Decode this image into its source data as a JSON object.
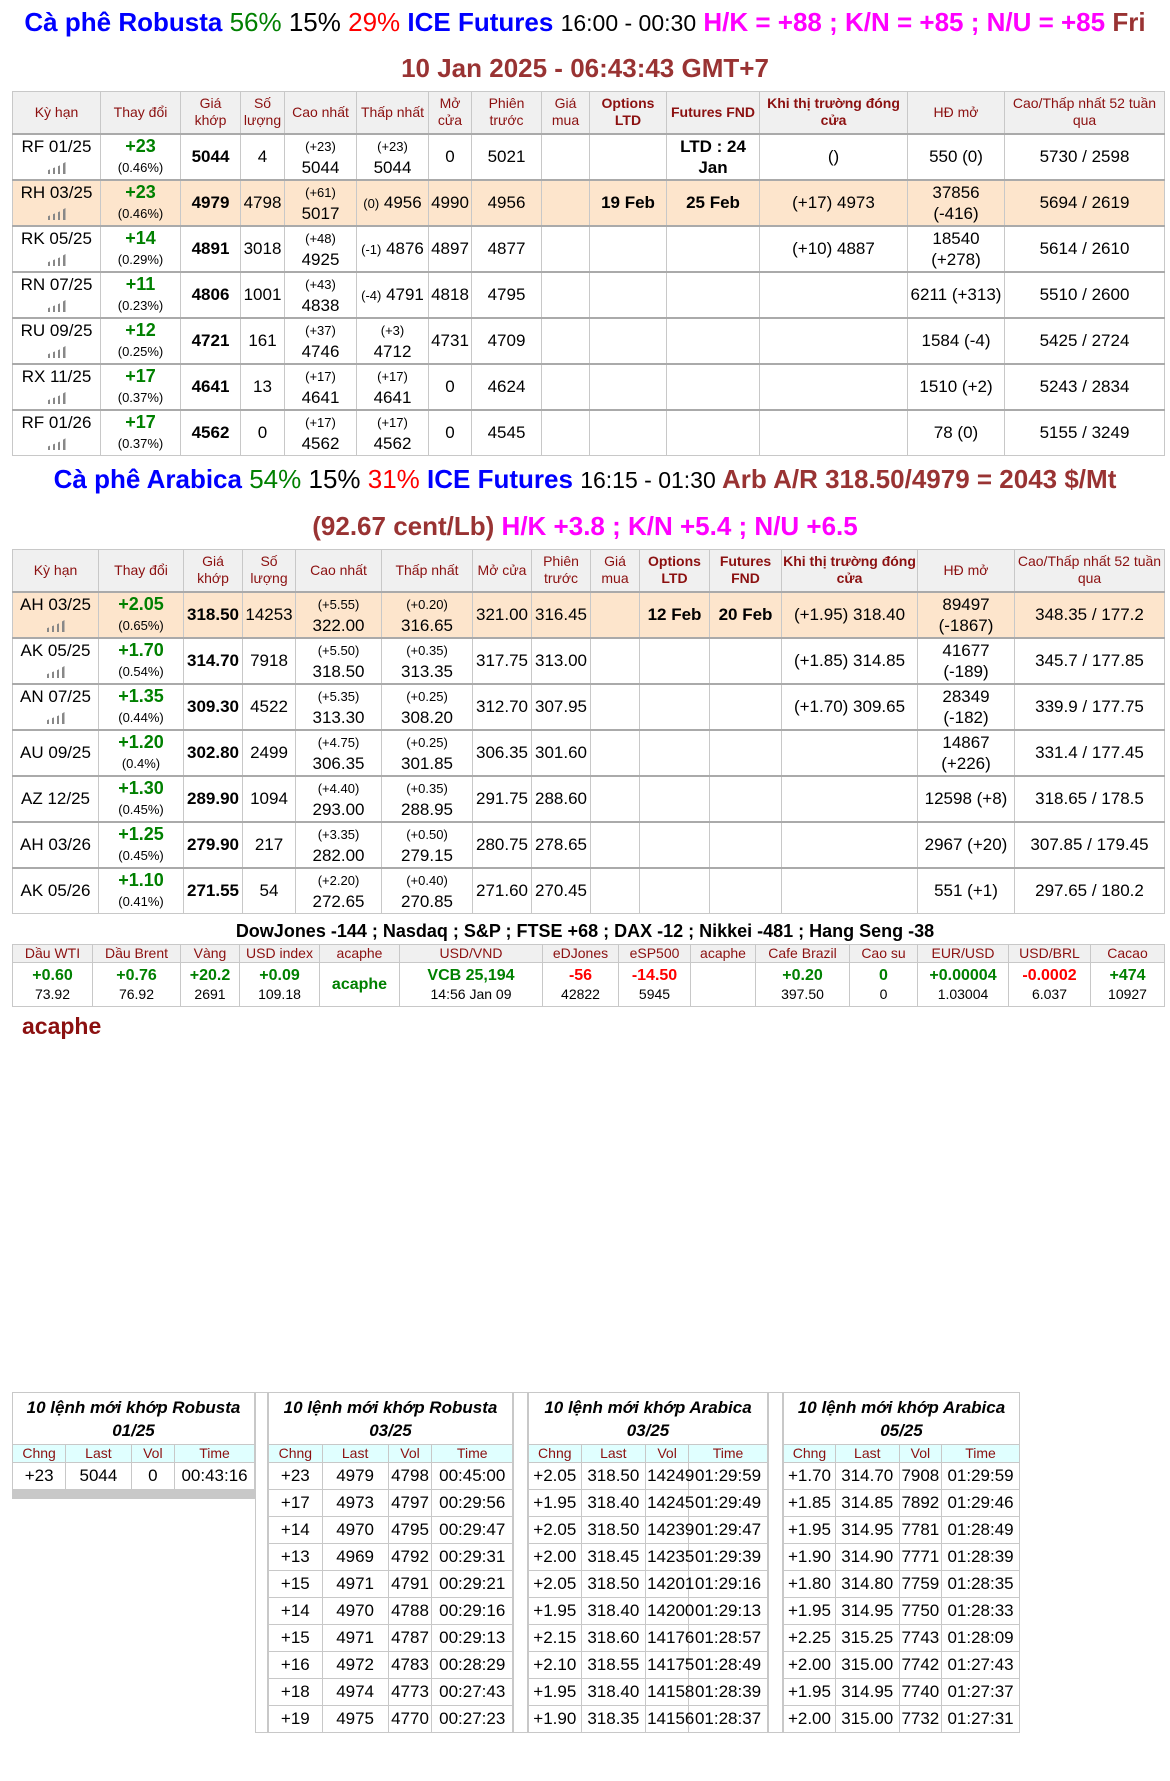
{
  "robusta_title": {
    "name": "Cà phê Robusta",
    "p1": "56%",
    "p2": "15%",
    "p3": "29%",
    "exchange": "ICE Futures",
    "hours": "16:00 - 00:30",
    "spreads": "H/K = +88 ; K/N = +85 ; N/U = +85",
    "date": "Fri 10 Jan 2025 - 06:43:43 GMT+7"
  },
  "headers_robusta": [
    "Kỳ hạn",
    "Thay đổi",
    "Giá khớp",
    "Số lượng",
    "Cao nhất",
    "Thấp nhất",
    "Mở cửa",
    "Phiên trước",
    "Giá mua",
    "Options LTD",
    "Futures FND",
    "Khi thị trường đóng cửa",
    "HĐ mở",
    "Cao/Thấp nhất 52 tuần qua"
  ],
  "robusta": [
    {
      "term": "RF 01/25",
      "chg": "+23",
      "pct": "(0.46%)",
      "last": "5044",
      "vol": "4",
      "hi_c": "(+23)",
      "hi": "5044",
      "lo_c": "(+23)",
      "lo": "5044",
      "lo_inline": false,
      "open": "0",
      "prev": "5021",
      "bid": "",
      "opt": "",
      "fnd": "LTD : 24 Jan",
      "close": "()",
      "oi": "550 (0)",
      "hl52": "5730 / 2598"
    },
    {
      "term": "RH 03/25",
      "chg": "+23",
      "pct": "(0.46%)",
      "last": "4979",
      "vol": "4798",
      "hi_c": "(+61)",
      "hi": "5017",
      "lo_c": "(0)",
      "lo": "4956",
      "lo_inline": true,
      "open": "4990",
      "prev": "4956",
      "bid": "",
      "opt": "19 Feb",
      "fnd": "25 Feb",
      "close": "(+17) 4973",
      "oi": "37856 (-416)",
      "hl52": "5694 / 2619",
      "highlight": true
    },
    {
      "term": "RK 05/25",
      "chg": "+14",
      "pct": "(0.29%)",
      "last": "4891",
      "vol": "3018",
      "hi_c": "(+48)",
      "hi": "4925",
      "lo_c": "(-1)",
      "lo": "4876",
      "lo_inline": true,
      "open": "4897",
      "prev": "4877",
      "bid": "",
      "opt": "",
      "fnd": "",
      "close": "(+10) 4887",
      "oi": "18540 (+278)",
      "hl52": "5614 / 2610"
    },
    {
      "term": "RN 07/25",
      "chg": "+11",
      "pct": "(0.23%)",
      "last": "4806",
      "vol": "1001",
      "hi_c": "(+43)",
      "hi": "4838",
      "lo_c": "(-4)",
      "lo": "4791",
      "lo_inline": true,
      "open": "4818",
      "prev": "4795",
      "bid": "",
      "opt": "",
      "fnd": "",
      "close": "",
      "oi": "6211 (+313)",
      "hl52": "5510 / 2600"
    },
    {
      "term": "RU 09/25",
      "chg": "+12",
      "pct": "(0.25%)",
      "last": "4721",
      "vol": "161",
      "hi_c": "(+37)",
      "hi": "4746",
      "lo_c": "(+3)",
      "lo": "4712",
      "lo_inline": false,
      "open": "4731",
      "prev": "4709",
      "bid": "",
      "opt": "",
      "fnd": "",
      "close": "",
      "oi": "1584 (-4)",
      "hl52": "5425 / 2724"
    },
    {
      "term": "RX 11/25",
      "chg": "+17",
      "pct": "(0.37%)",
      "last": "4641",
      "vol": "13",
      "hi_c": "(+17)",
      "hi": "4641",
      "lo_c": "(+17)",
      "lo": "4641",
      "lo_inline": false,
      "open": "0",
      "prev": "4624",
      "bid": "",
      "opt": "",
      "fnd": "",
      "close": "",
      "oi": "1510 (+2)",
      "hl52": "5243 / 2834"
    },
    {
      "term": "RF 01/26",
      "chg": "+17",
      "pct": "(0.37%)",
      "last": "4562",
      "vol": "0",
      "hi_c": "(+17)",
      "hi": "4562",
      "lo_c": "(+17)",
      "lo": "4562",
      "lo_inline": false,
      "open": "0",
      "prev": "4545",
      "bid": "",
      "opt": "",
      "fnd": "",
      "close": "",
      "oi": "78 (0)",
      "hl52": "5155 / 3249"
    }
  ],
  "arabica_title": {
    "name": "Cà phê Arabica",
    "p1": "54%",
    "p2": "15%",
    "p3": "31%",
    "exchange": "ICE Futures",
    "hours": "16:15 - 01:30",
    "arb": "Arb A/R 318.50/4979 = 2043 $/Mt (92.67 cent/Lb)",
    "spreads": "H/K +3.8 ; K/N +5.4 ; N/U +6.5"
  },
  "headers_arabica": [
    "Kỳ hạn",
    "Thay đổi",
    "Giá khớp",
    "Số lượng",
    "Cao nhất",
    "Thấp nhất",
    "Mở cửa",
    "Phiên trước",
    "Giá mua",
    "Options LTD",
    "Futures FND",
    "Khi thị trường đóng cửa",
    "HĐ mở",
    "Cao/Thấp nhất 52 tuần qua"
  ],
  "arabica": [
    {
      "term": "AH 03/25",
      "chg": "+2.05",
      "pct": "(0.65%)",
      "last": "318.50",
      "vol": "14253",
      "hi_c": "(+5.55)",
      "hi": "322.00",
      "lo_c": "(+0.20)",
      "lo": "316.65",
      "open": "321.00",
      "prev": "316.45",
      "bid": "",
      "opt": "12 Feb",
      "fnd": "20 Feb",
      "close": "(+1.95) 318.40",
      "oi": "89497 (-1867)",
      "hl52": "348.35 / 177.2",
      "highlight": true,
      "icon": true
    },
    {
      "term": "AK 05/25",
      "chg": "+1.70",
      "pct": "(0.54%)",
      "last": "314.70",
      "vol": "7918",
      "hi_c": "(+5.50)",
      "hi": "318.50",
      "lo_c": "(+0.35)",
      "lo": "313.35",
      "open": "317.75",
      "prev": "313.00",
      "bid": "",
      "opt": "",
      "fnd": "",
      "close": "(+1.85) 314.85",
      "oi": "41677 (-189)",
      "hl52": "345.7 / 177.85",
      "icon": true
    },
    {
      "term": "AN 07/25",
      "chg": "+1.35",
      "pct": "(0.44%)",
      "last": "309.30",
      "vol": "4522",
      "hi_c": "(+5.35)",
      "hi": "313.30",
      "lo_c": "(+0.25)",
      "lo": "308.20",
      "open": "312.70",
      "prev": "307.95",
      "bid": "",
      "opt": "",
      "fnd": "",
      "close": "(+1.70) 309.65",
      "oi": "28349 (-182)",
      "hl52": "339.9 / 177.75",
      "icon": true
    },
    {
      "term": "AU 09/25",
      "chg": "+1.20",
      "pct": "(0.4%)",
      "last": "302.80",
      "vol": "2499",
      "hi_c": "(+4.75)",
      "hi": "306.35",
      "lo_c": "(+0.25)",
      "lo": "301.85",
      "open": "306.35",
      "prev": "301.60",
      "bid": "",
      "opt": "",
      "fnd": "",
      "close": "",
      "oi": "14867 (+226)",
      "hl52": "331.4 / 177.45"
    },
    {
      "term": "AZ 12/25",
      "chg": "+1.30",
      "pct": "(0.45%)",
      "last": "289.90",
      "vol": "1094",
      "hi_c": "(+4.40)",
      "hi": "293.00",
      "lo_c": "(+0.35)",
      "lo": "288.95",
      "open": "291.75",
      "prev": "288.60",
      "bid": "",
      "opt": "",
      "fnd": "",
      "close": "",
      "oi": "12598 (+8)",
      "hl52": "318.65 / 178.5"
    },
    {
      "term": "AH 03/26",
      "chg": "+1.25",
      "pct": "(0.45%)",
      "last": "279.90",
      "vol": "217",
      "hi_c": "(+3.35)",
      "hi": "282.00",
      "lo_c": "(+0.50)",
      "lo": "279.15",
      "open": "280.75",
      "prev": "278.65",
      "bid": "",
      "opt": "",
      "fnd": "",
      "close": "",
      "oi": "2967 (+20)",
      "hl52": "307.85 / 179.45"
    },
    {
      "term": "AK 05/26",
      "chg": "+1.10",
      "pct": "(0.41%)",
      "last": "271.55",
      "vol": "54",
      "hi_c": "(+2.20)",
      "hi": "272.65",
      "lo_c": "(+0.40)",
      "lo": "270.85",
      "open": "271.60",
      "prev": "270.45",
      "bid": "",
      "opt": "",
      "fnd": "",
      "close": "",
      "oi": "551 (+1)",
      "hl52": "297.65 / 180.2"
    }
  ],
  "indices_line": "DowJones -144 ; Nasdaq ; S&P ; FTSE +68 ; DAX -12 ; Nikkei -481 ; Hang Seng -38",
  "markets": [
    {
      "label": "Dầu WTI",
      "chg": "+0.60",
      "val": "73.92",
      "color": "#008000"
    },
    {
      "label": "Dầu Brent",
      "chg": "+0.76",
      "val": "76.92",
      "color": "#008000"
    },
    {
      "label": "Vàng",
      "chg": "+20.2",
      "val": "2691",
      "color": "#008000"
    },
    {
      "label": "USD index",
      "chg": "+0.09",
      "val": "109.18",
      "color": "#008000"
    },
    {
      "label": "acaphe",
      "chg": "acaphe",
      "val": "",
      "color": "#008000"
    },
    {
      "label": "USD/VND",
      "chg": "VCB 25,194",
      "val": "14:56 Jan 09",
      "color": "#008000"
    },
    {
      "label": "eDJones",
      "chg": "-56",
      "val": "42822",
      "color": "#ff0000"
    },
    {
      "label": "eSP500",
      "chg": "-14.50",
      "val": "5945",
      "color": "#ff0000"
    },
    {
      "label": "acaphe",
      "chg": "",
      "val": "",
      "color": "#008000"
    },
    {
      "label": "Cafe Brazil",
      "chg": "+0.20",
      "val": "397.50",
      "color": "#008000"
    },
    {
      "label": "Cao su",
      "chg": "0",
      "val": "0",
      "color": "#008000"
    },
    {
      "label": "EUR/USD",
      "chg": "+0.00004",
      "val": "1.03004",
      "color": "#008000"
    },
    {
      "label": "USD/BRL",
      "chg": "-0.0002",
      "val": "6.037",
      "color": "#ff0000"
    },
    {
      "label": "Cacao",
      "chg": "+474",
      "val": "10927",
      "color": "#008000"
    }
  ],
  "footer_brand": "acaphe",
  "trade_headers": [
    "Chng",
    "Last",
    "Vol",
    "Time"
  ],
  "trades": [
    {
      "title": "10 lệnh mới khớp Robusta 01/25",
      "rows": [
        [
          "+23",
          "5044",
          "0",
          "00:43:16"
        ],
        [
          "",
          "",
          "",
          ""
        ],
        [
          "",
          "",
          "",
          ""
        ],
        [
          "",
          "",
          "",
          ""
        ],
        [
          "",
          "",
          "",
          ""
        ],
        [
          "",
          "",
          "",
          ""
        ],
        [
          "",
          "",
          "",
          ""
        ],
        [
          "",
          "",
          "",
          ""
        ],
        [
          "",
          "",
          "",
          ""
        ],
        [
          "",
          "",
          "",
          ""
        ]
      ]
    },
    {
      "title": "10 lệnh mới khớp Robusta 03/25",
      "rows": [
        [
          "+23",
          "4979",
          "4798",
          "00:45:00"
        ],
        [
          "+17",
          "4973",
          "4797",
          "00:29:56"
        ],
        [
          "+14",
          "4970",
          "4795",
          "00:29:47"
        ],
        [
          "+13",
          "4969",
          "4792",
          "00:29:31"
        ],
        [
          "+15",
          "4971",
          "4791",
          "00:29:21"
        ],
        [
          "+14",
          "4970",
          "4788",
          "00:29:16"
        ],
        [
          "+15",
          "4971",
          "4787",
          "00:29:13"
        ],
        [
          "+16",
          "4972",
          "4783",
          "00:28:29"
        ],
        [
          "+18",
          "4974",
          "4773",
          "00:27:43"
        ],
        [
          "+19",
          "4975",
          "4770",
          "00:27:23"
        ]
      ]
    },
    {
      "title": "10 lệnh mới khớp Arabica 03/25",
      "rows": [
        [
          "+2.05",
          "318.50",
          "14249",
          "01:29:59"
        ],
        [
          "+1.95",
          "318.40",
          "14245",
          "01:29:49"
        ],
        [
          "+2.05",
          "318.50",
          "14239",
          "01:29:47"
        ],
        [
          "+2.00",
          "318.45",
          "14235",
          "01:29:39"
        ],
        [
          "+2.05",
          "318.50",
          "14201",
          "01:29:16"
        ],
        [
          "+1.95",
          "318.40",
          "14200",
          "01:29:13"
        ],
        [
          "+2.15",
          "318.60",
          "14176",
          "01:28:57"
        ],
        [
          "+2.10",
          "318.55",
          "14175",
          "01:28:49"
        ],
        [
          "+1.95",
          "318.40",
          "14158",
          "01:28:39"
        ],
        [
          "+1.90",
          "318.35",
          "14156",
          "01:28:37"
        ]
      ]
    },
    {
      "title": "10 lệnh mới khớp Arabica 05/25",
      "rows": [
        [
          "+1.70",
          "314.70",
          "7908",
          "01:29:59"
        ],
        [
          "+1.85",
          "314.85",
          "7892",
          "01:29:46"
        ],
        [
          "+1.95",
          "314.95",
          "7781",
          "01:28:49"
        ],
        [
          "+1.90",
          "314.90",
          "7771",
          "01:28:39"
        ],
        [
          "+1.80",
          "314.80",
          "7759",
          "01:28:35"
        ],
        [
          "+1.95",
          "314.95",
          "7750",
          "01:28:33"
        ],
        [
          "+2.25",
          "315.25",
          "7743",
          "01:28:09"
        ],
        [
          "+2.00",
          "315.00",
          "7742",
          "01:27:43"
        ],
        [
          "+1.95",
          "314.95",
          "7740",
          "01:27:37"
        ],
        [
          "+2.00",
          "315.00",
          "7732",
          "01:27:31"
        ]
      ]
    }
  ]
}
